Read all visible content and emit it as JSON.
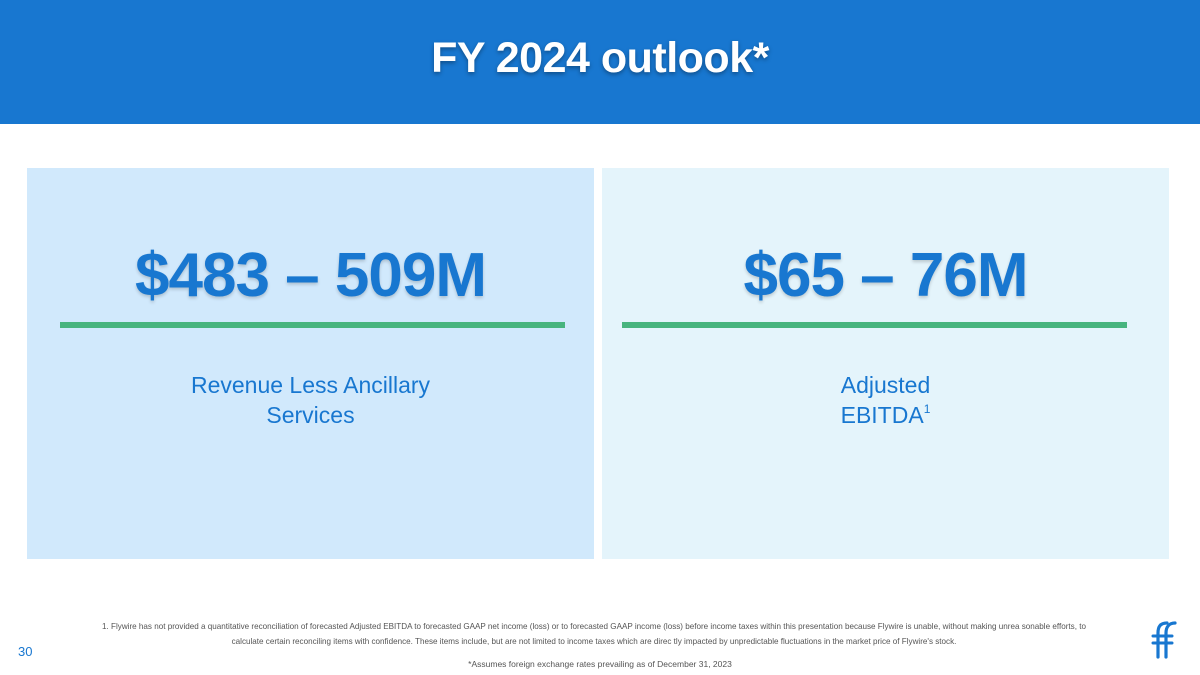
{
  "slide": {
    "title": "FY 2024 outlook*",
    "page_number": "30"
  },
  "panels": {
    "revenue": {
      "figure": "$483 – 509M",
      "label_line1": "Revenue Less Ancillary",
      "label_line2": "Services"
    },
    "ebitda": {
      "figure": "$65 – 76M",
      "label_line1": "Adjusted",
      "label_line2": "EBITDA",
      "footnote_marker": "1"
    }
  },
  "footer": {
    "footnote_line1": "1. Flywire has not provided a quantitative reconciliation of forecasted Adjusted EBITDA to forecasted GAAP net income (loss)            or  to forecasted GAAP income (loss) before income taxes within this presentation because Flywire is unable, without making unrea            sonable efforts, to",
    "footnote_line2": "calculate certain reconciling items with confidence. These items include, but are not limited to income taxes which are direc             tly impacted by unpredictable fluctuations in the market price of Flywire's stock.",
    "assumption": "*Assumes foreign exchange rates prevailing as of December 31, 2023",
    "logo_icon": "flywire-logo-icon"
  },
  "colors": {
    "header": "#1877d0",
    "accent_text": "#1877d0",
    "rule": "#47b47e",
    "panel_left": "#d1e9fc",
    "panel_right": "#e4f4fb"
  }
}
